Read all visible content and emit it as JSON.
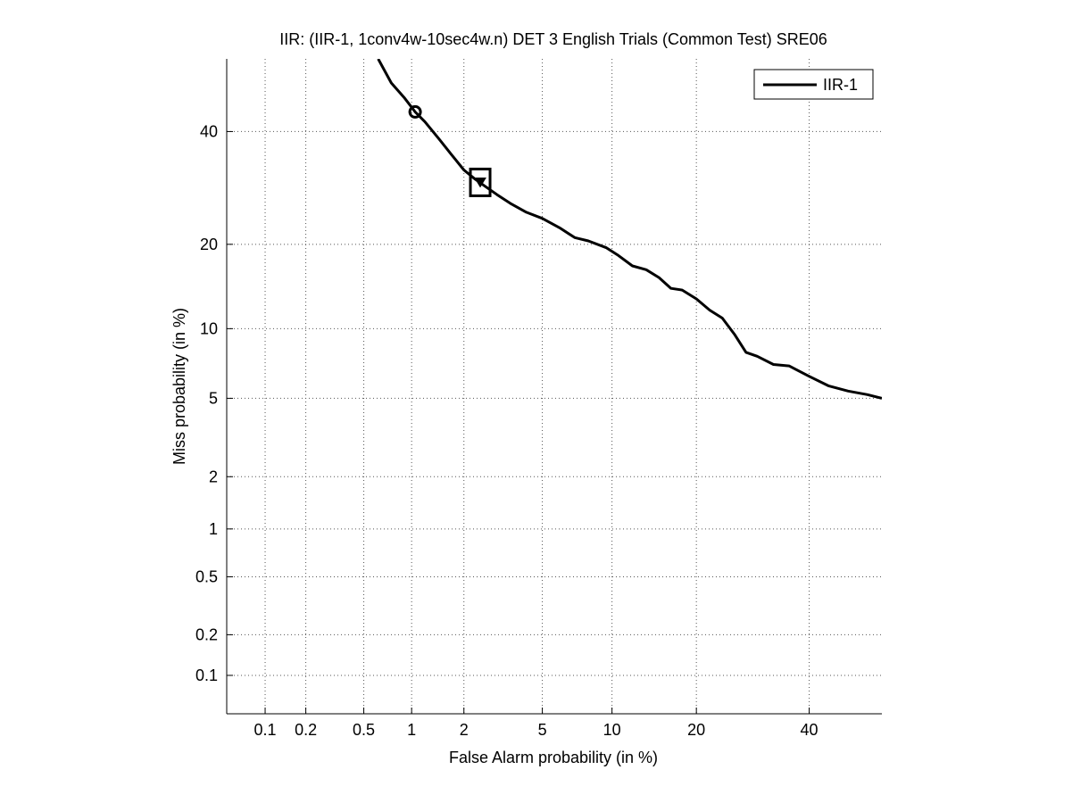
{
  "chart_data": {
    "type": "line",
    "title": "IIR: (IIR-1, 1conv4w-10sec4w.n) DET 3 English Trials (Common Test) SRE06",
    "xlabel": "False Alarm probability (in %)",
    "ylabel": "Miss probability (in %)",
    "scale": "normal-deviate (probit) on both axes",
    "xlim": [
      0.05,
      55
    ],
    "ylim": [
      0.05,
      55
    ],
    "x_ticks": [
      0.1,
      0.2,
      0.5,
      1,
      2,
      5,
      10,
      20,
      40
    ],
    "x_tick_labels": [
      "0.1",
      "0.2",
      "0.5",
      "1",
      "2",
      "5",
      "10",
      "20",
      "40"
    ],
    "y_ticks": [
      0.1,
      0.2,
      0.5,
      1,
      2,
      5,
      10,
      20,
      40
    ],
    "y_tick_labels": [
      "0.1",
      "0.2",
      "0.5",
      "1",
      "2",
      "5",
      "10",
      "20",
      "40"
    ],
    "grid": true,
    "legend": {
      "placement": "top-right",
      "entries": [
        "IIR-1"
      ]
    },
    "series": [
      {
        "name": "IIR-1",
        "color": "#000000",
        "x": [
          0.62,
          0.75,
          0.9,
          1.05,
          1.2,
          1.45,
          1.7,
          2.0,
          2.3,
          2.6,
          3.0,
          3.5,
          4.2,
          5.0,
          6.0,
          7.0,
          8.0,
          9.5,
          10.5,
          12.0,
          13.5,
          15.0,
          16.5,
          18.0,
          20.0,
          22.0,
          24.0,
          26.0,
          28.0,
          30.0,
          33.0,
          36.0,
          40.0,
          44.0,
          48.0,
          52.0,
          55.0
        ],
        "y": [
          55.0,
          50.0,
          47.0,
          44.0,
          42.0,
          38.5,
          35.5,
          32.5,
          30.8,
          29.5,
          28.0,
          26.5,
          25.0,
          24.0,
          22.5,
          21.0,
          20.5,
          19.5,
          18.5,
          17.0,
          16.5,
          15.5,
          14.2,
          14.0,
          13.0,
          11.8,
          11.0,
          9.5,
          8.0,
          7.7,
          7.1,
          7.0,
          6.3,
          5.7,
          5.4,
          5.2,
          5.0
        ]
      }
    ],
    "markers": [
      {
        "shape": "circle",
        "x": 1.05,
        "y": 44.0
      },
      {
        "shape": "square",
        "x": 2.45,
        "y": 30.2
      },
      {
        "shape": "triangle-down",
        "x": 2.45,
        "y": 30.2
      }
    ]
  }
}
